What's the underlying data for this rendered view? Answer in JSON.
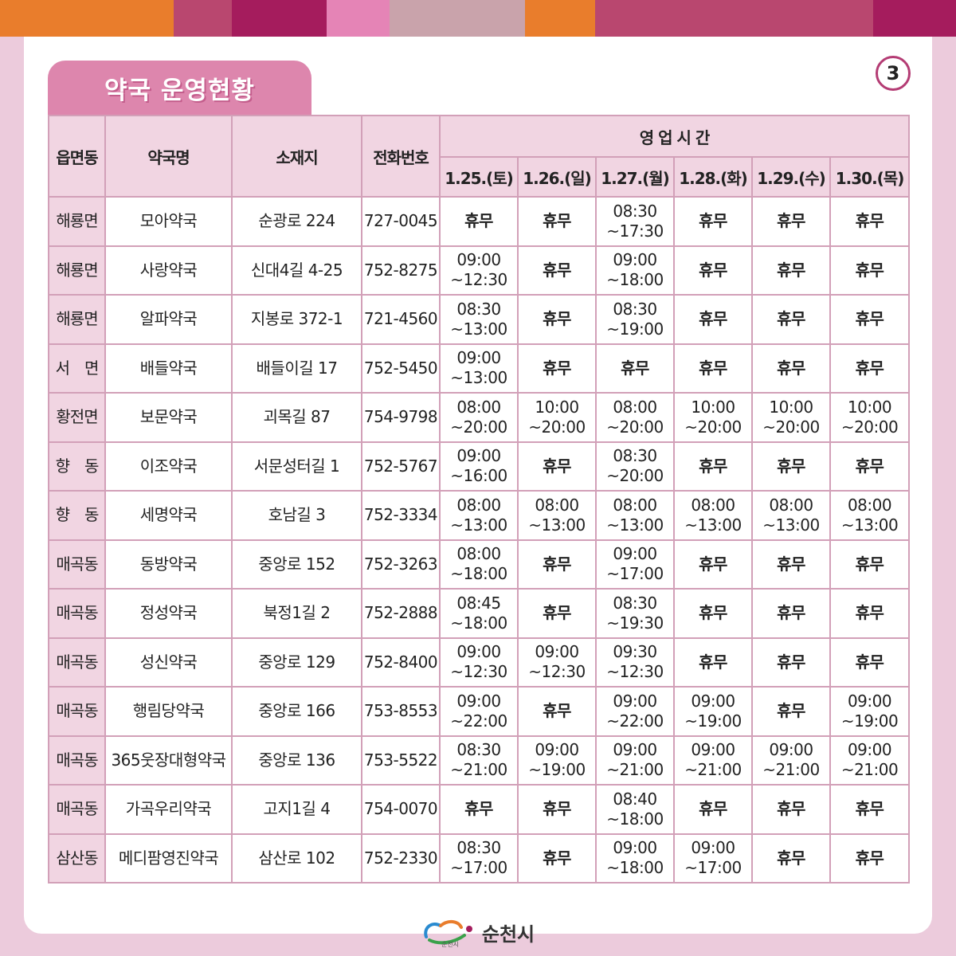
{
  "colors": {
    "top_bar": [
      "#e97d2c",
      "#b9476f",
      "#a51c5d",
      "#e584b6",
      "#c9a3ab",
      "#e97d2c",
      "#b9476f",
      "#a51c5d"
    ],
    "title_tab": "#dd86ad",
    "header_bg": "#f1d5e2",
    "closed_text": "#e8202a"
  },
  "header": {
    "title": "약국 운영현황",
    "page_number": "3"
  },
  "table": {
    "columns": {
      "region": "읍면동",
      "name": "약국명",
      "address": "소재지",
      "phone": "전화번호",
      "hours_group": "영 업 시 간"
    },
    "dates": [
      "1.25.(토)",
      "1.26.(일)",
      "1.27.(월)",
      "1.28.(화)",
      "1.29.(수)",
      "1.30.(목)"
    ],
    "rows": [
      {
        "region": "해룡면",
        "name": "모아약국",
        "address": "순광로 224",
        "phone": "727-0045",
        "hours": [
          "휴무",
          "휴무",
          "08:30\n~17:30",
          "휴무",
          "휴무",
          "휴무"
        ]
      },
      {
        "region": "해룡면",
        "name": "사랑약국",
        "address": "신대4길 4-25",
        "phone": "752-8275",
        "hours": [
          "09:00\n~12:30",
          "휴무",
          "09:00\n~18:00",
          "휴무",
          "휴무",
          "휴무"
        ]
      },
      {
        "region": "해룡면",
        "name": "알파약국",
        "address": "지봉로 372-1",
        "phone": "721-4560",
        "hours": [
          "08:30\n~13:00",
          "휴무",
          "08:30\n~19:00",
          "휴무",
          "휴무",
          "휴무"
        ]
      },
      {
        "region": "서　면",
        "name": "배들약국",
        "address": "배들이길 17",
        "phone": "752-5450",
        "hours": [
          "09:00\n~13:00",
          "휴무",
          "휴무",
          "휴무",
          "휴무",
          "휴무"
        ]
      },
      {
        "region": "황전면",
        "name": "보문약국",
        "address": "괴목길 87",
        "phone": "754-9798",
        "hours": [
          "08:00\n~20:00",
          "10:00\n~20:00",
          "08:00\n~20:00",
          "10:00\n~20:00",
          "10:00\n~20:00",
          "10:00\n~20:00"
        ]
      },
      {
        "region": "향　동",
        "name": "이조약국",
        "address": "서문성터길 1",
        "phone": "752-5767",
        "hours": [
          "09:00\n~16:00",
          "휴무",
          "08:30\n~20:00",
          "휴무",
          "휴무",
          "휴무"
        ]
      },
      {
        "region": "향　동",
        "name": "세명약국",
        "address": "호남길 3",
        "phone": "752-3334",
        "hours": [
          "08:00\n~13:00",
          "08:00\n~13:00",
          "08:00\n~13:00",
          "08:00\n~13:00",
          "08:00\n~13:00",
          "08:00\n~13:00"
        ]
      },
      {
        "region": "매곡동",
        "name": "동방약국",
        "address": "중앙로 152",
        "phone": "752-3263",
        "hours": [
          "08:00\n~18:00",
          "휴무",
          "09:00\n~17:00",
          "휴무",
          "휴무",
          "휴무"
        ]
      },
      {
        "region": "매곡동",
        "name": "정성약국",
        "address": "북정1길 2",
        "phone": "752-2888",
        "hours": [
          "08:45\n~18:00",
          "휴무",
          "08:30\n~19:30",
          "휴무",
          "휴무",
          "휴무"
        ]
      },
      {
        "region": "매곡동",
        "name": "성신약국",
        "address": "중앙로 129",
        "phone": "752-8400",
        "hours": [
          "09:00\n~12:30",
          "09:00\n~12:30",
          "09:30\n~12:30",
          "휴무",
          "휴무",
          "휴무"
        ]
      },
      {
        "region": "매곡동",
        "name": "행림당약국",
        "address": "중앙로 166",
        "phone": "753-8553",
        "hours": [
          "09:00\n~22:00",
          "휴무",
          "09:00\n~22:00",
          "09:00\n~19:00",
          "휴무",
          "09:00\n~19:00"
        ]
      },
      {
        "region": "매곡동",
        "name": "365웃장대형약국",
        "address": "중앙로 136",
        "phone": "753-5522",
        "hours": [
          "08:30\n~21:00",
          "09:00\n~19:00",
          "09:00\n~21:00",
          "09:00\n~21:00",
          "09:00\n~21:00",
          "09:00\n~21:00"
        ]
      },
      {
        "region": "매곡동",
        "name": "가곡우리약국",
        "address": "고지1길 4",
        "phone": "754-0070",
        "hours": [
          "휴무",
          "휴무",
          "08:40\n~18:00",
          "휴무",
          "휴무",
          "휴무"
        ]
      },
      {
        "region": "삼산동",
        "name": "메디팜영진약국",
        "address": "삼산로 102",
        "phone": "752-2330",
        "hours": [
          "08:30\n~17:00",
          "휴무",
          "09:00\n~18:00",
          "09:00\n~17:00",
          "휴무",
          "휴무"
        ]
      }
    ]
  },
  "footer": {
    "logo_icon": "suncheon-logo",
    "logo_sub": "순천시",
    "city_name": "순천시"
  }
}
